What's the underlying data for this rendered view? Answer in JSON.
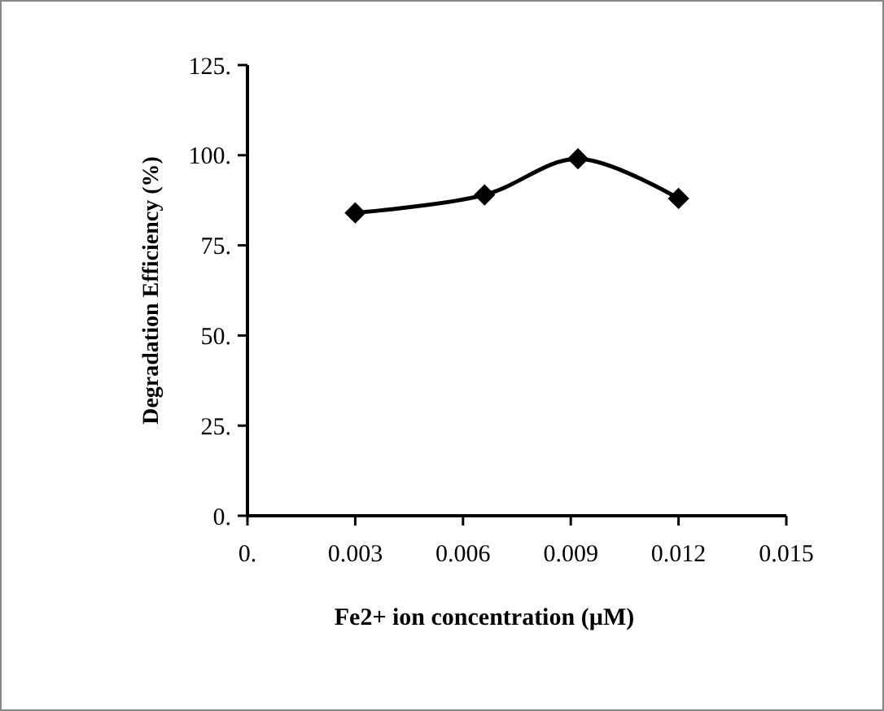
{
  "chart_data": {
    "type": "line",
    "xlabel": "Fe2+ ion concentration (µM)",
    "ylabel": "Degradation  Efficiency (%)",
    "x": [
      0.003,
      0.0066,
      0.0092,
      0.012
    ],
    "series": [
      {
        "color": "#000000",
        "values": [
          84,
          89,
          99,
          88
        ]
      }
    ],
    "xlim": [
      0,
      0.015
    ],
    "xticks": [
      {
        "value": 0,
        "label": "0."
      },
      0.003,
      0.006,
      0.009,
      0.012,
      0.015
    ],
    "ylim": [
      0,
      125
    ],
    "yticks": [
      {
        "value": 0,
        "label": "0."
      },
      {
        "value": 25,
        "label": "25."
      },
      {
        "value": 50,
        "label": "50."
      },
      {
        "value": 75,
        "label": "75."
      },
      {
        "value": 100,
        "label": "100."
      },
      {
        "value": 125,
        "label": "125."
      }
    ],
    "marker": "diamond",
    "line_style": "solid",
    "grid": false
  }
}
